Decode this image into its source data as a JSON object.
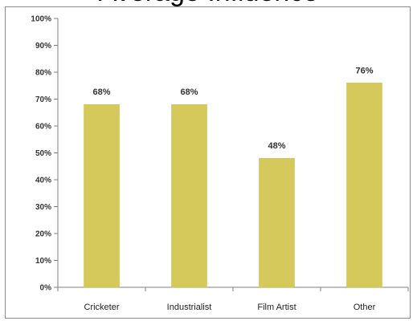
{
  "chart_data": {
    "type": "bar",
    "title": "Average Influence",
    "categories": [
      "Cricketer",
      "Industrialist",
      "Film Artist",
      "Other"
    ],
    "values": [
      68,
      68,
      48,
      76
    ],
    "data_labels": [
      "68%",
      "68%",
      "48%",
      "76%"
    ],
    "ylim": [
      0,
      100
    ],
    "yticks": [
      "0%",
      "10%",
      "20%",
      "30%",
      "40%",
      "50%",
      "60%",
      "70%",
      "80%",
      "90%",
      "100%"
    ],
    "xlabel": "",
    "ylabel": "",
    "grid": false,
    "legend": "none",
    "bar_color": "#d4c95a",
    "bar_edge_color": "#c8bc48"
  }
}
